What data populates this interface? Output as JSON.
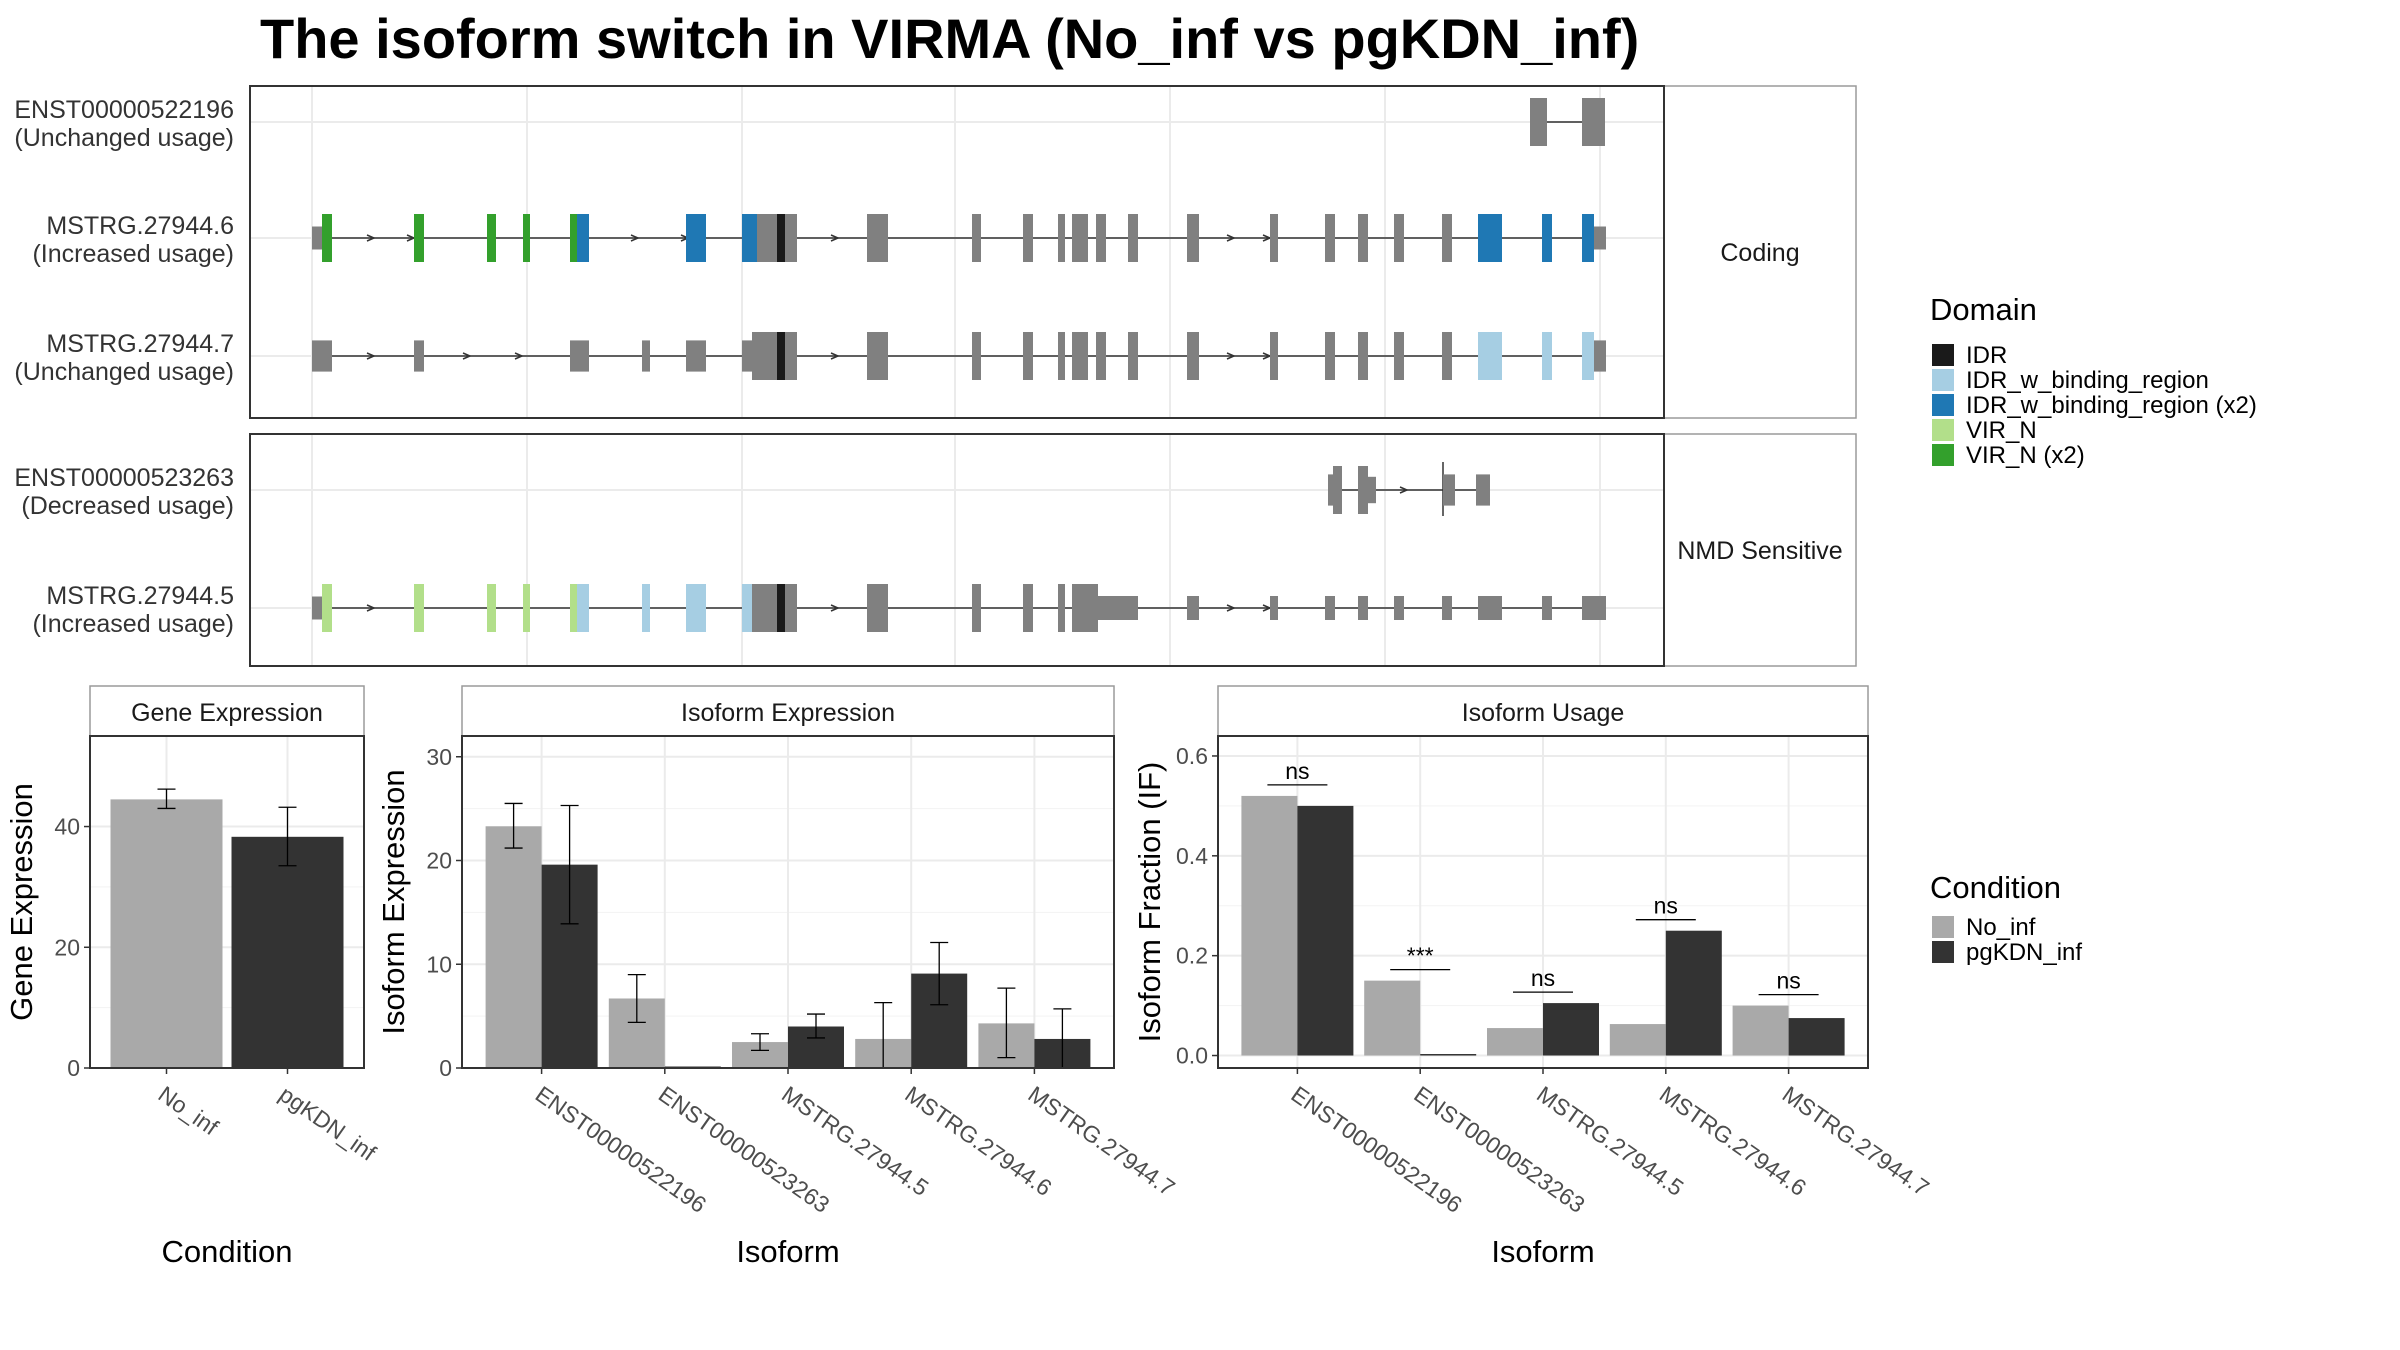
{
  "title": "The isoform switch in VIRMA (No_inf vs pgKDN_inf)",
  "colors": {
    "No_inf": "#a9a9a9",
    "pgKDN_inf": "#333333",
    "exon": "#808080",
    "IDR": "#1a1a1a",
    "IDR_w_binding_region": "#a6cee3",
    "IDR_w_binding_region (x2)": "#1f78b4",
    "VIR_N": "#b2df8a",
    "VIR_N (x2)": "#33a02c"
  },
  "legends": {
    "domain": {
      "title": "Domain",
      "items": [
        {
          "label": "IDR",
          "key": "IDR"
        },
        {
          "label": "IDR_w_binding_region",
          "key": "IDR_w_binding_region"
        },
        {
          "label": "IDR_w_binding_region (x2)",
          "key": "IDR_w_binding_region (x2)"
        },
        {
          "label": "VIR_N",
          "key": "VIR_N"
        },
        {
          "label": "VIR_N (x2)",
          "key": "VIR_N (x2)"
        }
      ]
    },
    "condition": {
      "title": "Condition",
      "items": [
        {
          "label": "No_inf",
          "key": "No_inf"
        },
        {
          "label": "pgKDN_inf",
          "key": "pgKDN_inf"
        }
      ]
    }
  },
  "structure": {
    "groups": [
      {
        "label": "Coding",
        "transcripts": [
          {
            "name": "ENST00000522196",
            "usage": "(Unchanged usage)"
          },
          {
            "name": "MSTRG.27944.6",
            "usage": "(Increased usage)"
          },
          {
            "name": "MSTRG.27944.7",
            "usage": "(Unchanged usage)"
          }
        ]
      },
      {
        "label": "NMD Sensitive",
        "transcripts": [
          {
            "name": "ENST00000523263",
            "usage": "(Decreased usage)"
          },
          {
            "name": "MSTRG.27944.5",
            "usage": "(Increased usage)"
          }
        ]
      }
    ]
  },
  "chart_data": [
    {
      "type": "bar",
      "strip": "Gene Expression",
      "xlabel": "Condition",
      "ylabel": "Gene Expression",
      "ylim": [
        0,
        55
      ],
      "yticks": [
        0,
        20,
        40
      ],
      "categories": [
        "No_inf",
        "pgKDN_inf"
      ],
      "series": [
        {
          "name": "No_inf",
          "values": [
            44.5,
            null
          ],
          "err_low": [
            43.0,
            null
          ],
          "err_high": [
            46.2,
            null
          ]
        },
        {
          "name": "pgKDN_inf",
          "values": [
            null,
            38.3
          ],
          "err_low": [
            null,
            33.5
          ],
          "err_high": [
            null,
            43.2
          ]
        }
      ]
    },
    {
      "type": "bar",
      "strip": "Isoform Expression",
      "xlabel": "Isoform",
      "ylabel": "Isoform Expression",
      "ylim": [
        0,
        32
      ],
      "yticks": [
        0,
        10,
        20,
        30
      ],
      "categories": [
        "ENST00000522196",
        "ENST00000523263",
        "MSTRG.27944.5",
        "MSTRG.27944.6",
        "MSTRG.27944.7"
      ],
      "series": [
        {
          "name": "No_inf",
          "values": [
            23.3,
            6.7,
            2.5,
            2.8,
            4.3
          ],
          "err_low": [
            21.2,
            4.4,
            1.7,
            0.0,
            1.0
          ],
          "err_high": [
            25.5,
            9.0,
            3.3,
            6.3,
            7.7
          ]
        },
        {
          "name": "pgKDN_inf",
          "values": [
            19.6,
            0.0,
            4.0,
            9.1,
            2.8
          ],
          "err_low": [
            13.9,
            0.0,
            2.9,
            6.1,
            0.0
          ],
          "err_high": [
            25.3,
            0.0,
            5.2,
            12.1,
            5.7
          ]
        }
      ]
    },
    {
      "type": "bar",
      "strip": "Isoform Usage",
      "xlabel": "Isoform",
      "ylabel": "Isoform Fraction (IF)",
      "ylim": [
        -0.025,
        0.64
      ],
      "yticks": [
        0.0,
        0.2,
        0.4,
        0.6
      ],
      "categories": [
        "ENST00000522196",
        "ENST00000523263",
        "MSTRG.27944.5",
        "MSTRG.27944.6",
        "MSTRG.27944.7"
      ],
      "series": [
        {
          "name": "No_inf",
          "values": [
            0.52,
            0.15,
            0.055,
            0.063,
            0.1
          ]
        },
        {
          "name": "pgKDN_inf",
          "values": [
            0.5,
            0.0,
            0.105,
            0.25,
            0.075
          ]
        }
      ],
      "significance": [
        "ns",
        "***",
        "ns",
        "ns",
        "ns"
      ]
    }
  ]
}
